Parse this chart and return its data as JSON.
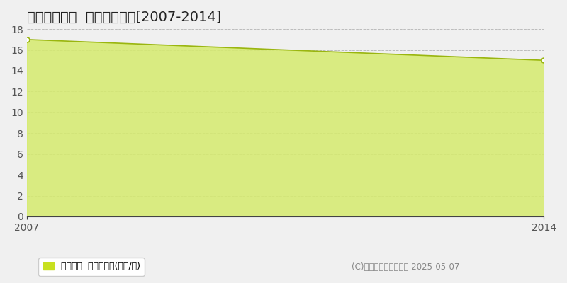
{
  "title": "赤穂市南宮町  住宅価格推移[2007-2014]",
  "x": [
    2007,
    2014
  ],
  "y": [
    17.0,
    15.0
  ],
  "ylim": [
    0,
    18
  ],
  "yticks": [
    0,
    2,
    4,
    6,
    8,
    10,
    12,
    14,
    16,
    18
  ],
  "xlim": [
    2007,
    2014
  ],
  "xticks": [
    2007,
    2014
  ],
  "fill_color": "#d6eb6e",
  "fill_alpha": 0.85,
  "line_color": "#9ab510",
  "line_width": 1.2,
  "marker_color": "#9ab510",
  "marker_face": "white",
  "marker_size": 5,
  "grid_color": "#999999",
  "grid_style": "--",
  "grid_alpha": 0.6,
  "bg_color": "#f0f0f0",
  "plot_bg_color": "#f0f0f0",
  "legend_label": "住宅価格  平均坪単価(万円/坪)",
  "legend_color": "#c8e020",
  "copyright_text": "(C)土地価格ドットコム 2025-05-07",
  "title_fontsize": 14,
  "tick_fontsize": 10,
  "legend_fontsize": 9,
  "copyright_fontsize": 8.5
}
